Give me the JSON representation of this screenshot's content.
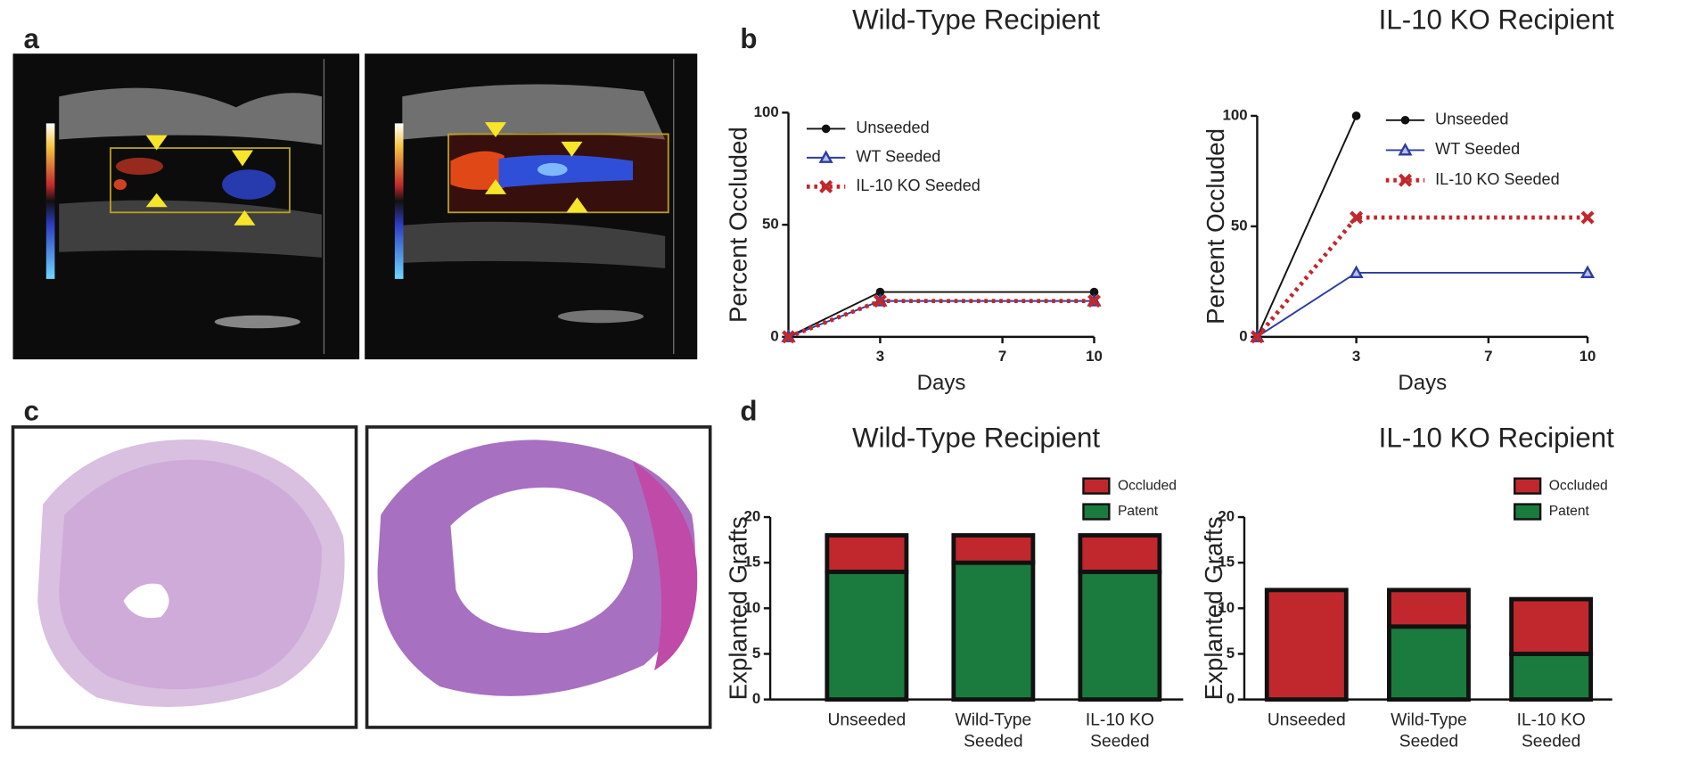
{
  "panel_labels": [
    "a",
    "b",
    "c",
    "d"
  ],
  "chart_data": [
    {
      "type": "line",
      "title": "Wild-Type Recipient",
      "y_label": "Percent Occluded",
      "x_label": "Days",
      "x": [
        0,
        3,
        10
      ],
      "xlim": [
        0,
        10
      ],
      "xticks": [
        3,
        7,
        10
      ],
      "ylim": [
        0,
        100
      ],
      "yticks": [
        0,
        50,
        100
      ],
      "series": [
        {
          "name": "Unseeded",
          "color": "#111111",
          "marker": "circle",
          "line_style": "solid",
          "values": [
            0,
            20,
            20
          ]
        },
        {
          "name": "WT Seeded",
          "color": "#2e3c9c",
          "marker": "triangle",
          "line_style": "solid",
          "values": [
            0,
            16,
            16
          ]
        },
        {
          "name": "IL-10 KO Seeded",
          "color": "#c0282d",
          "marker": "x",
          "line_style": "dotted",
          "values": [
            0,
            16,
            16
          ]
        }
      ]
    },
    {
      "type": "line",
      "title": "IL-10 KO Recipient",
      "y_label": "Percent Occluded",
      "x_label": "Days",
      "x": [
        0,
        3,
        10
      ],
      "xlim": [
        0,
        10
      ],
      "xticks": [
        3,
        7,
        10
      ],
      "ylim": [
        0,
        100
      ],
      "yticks": [
        0,
        50,
        100
      ],
      "series": [
        {
          "name": "Unseeded",
          "color": "#111111",
          "marker": "circle",
          "line_style": "solid",
          "values": [
            0,
            100,
            null
          ]
        },
        {
          "name": "WT Seeded",
          "color": "#2e3c9c",
          "marker": "triangle",
          "line_style": "solid",
          "values": [
            0,
            29,
            29
          ]
        },
        {
          "name": "IL-10 KO Seeded",
          "color": "#c0282d",
          "marker": "x",
          "line_style": "dotted",
          "values": [
            0,
            54,
            54
          ]
        }
      ]
    },
    {
      "type": "stacked_bar",
      "title": "Wild-Type Recipient",
      "y_label": "Explanted Grafts",
      "categories": [
        "Unseeded",
        "Wild-Type Seeded",
        "IL-10 KO Seeded"
      ],
      "ylim": [
        0,
        20
      ],
      "yticks": [
        0,
        5,
        10,
        15,
        20
      ],
      "series": [
        {
          "name": "Patent",
          "color": "#1b7a3e",
          "values": [
            14,
            15,
            14
          ]
        },
        {
          "name": "Occluded",
          "color": "#c0282d",
          "values": [
            4,
            3,
            4
          ]
        }
      ]
    },
    {
      "type": "stacked_bar",
      "title": "IL-10 KO Recipient",
      "y_label": "Explanted Grafts",
      "categories": [
        "Unseeded",
        "Wild-Type Seeded",
        "IL-10 KO Seeded"
      ],
      "ylim": [
        0,
        20
      ],
      "yticks": [
        0,
        5,
        10,
        15,
        20
      ],
      "series": [
        {
          "name": "Patent",
          "color": "#1b7a3e",
          "values": [
            0,
            8,
            5
          ]
        },
        {
          "name": "Occluded",
          "color": "#c0282d",
          "values": [
            12,
            4,
            6
          ]
        }
      ]
    }
  ]
}
